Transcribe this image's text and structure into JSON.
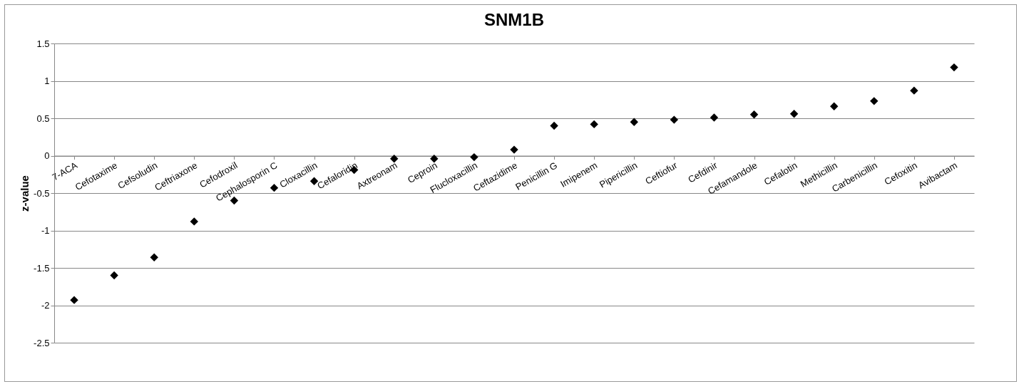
{
  "chart_data": {
    "type": "scatter",
    "title": "SNM1B",
    "ylabel": "z-value",
    "categories": [
      "7-ACA",
      "Cefotaxime",
      "Cefsoludin",
      "Ceftriaxone",
      "Cefodroxil",
      "Cephalosporin C",
      "Cloxacillin",
      "Cefaloridin",
      "Axtreonam",
      "Ceproin",
      "Flucloxacillin",
      "Ceftazidime",
      "Penicillin G",
      "Imipenem",
      "Pipericillin",
      "Ceftiofur",
      "Cefdinir",
      "Cefamandole",
      "Cefalotin",
      "Methicillin",
      "Carbenicillin",
      "Cefoxitin",
      "Avibactam"
    ],
    "series": [
      {
        "color": "#000000",
        "values": [
          -1.93,
          -1.6,
          -1.36,
          -0.88,
          -0.6,
          -0.43,
          -0.34,
          -0.19,
          -0.04,
          -0.04,
          -0.02,
          0.08,
          0.4,
          0.42,
          0.45,
          0.48,
          0.51,
          0.55,
          0.56,
          0.66,
          0.73,
          0.87,
          1.18
        ]
      }
    ],
    "ylim": [
      -2.5,
      1.5
    ],
    "yticks": [
      -2.5,
      -2,
      -1.5,
      -1,
      -0.5,
      0,
      0.5,
      1,
      1.5
    ],
    "grid": "y",
    "marker": "diamond",
    "legend": false
  }
}
